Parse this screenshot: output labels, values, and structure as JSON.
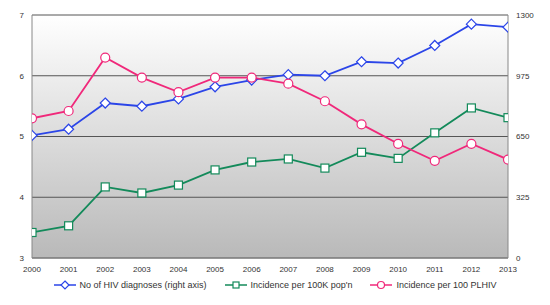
{
  "chart_data": {
    "type": "line",
    "x": [
      2000,
      2001,
      2002,
      2003,
      2004,
      2005,
      2006,
      2007,
      2008,
      2009,
      2010,
      2011,
      2012,
      2013
    ],
    "xlim": [
      2000,
      2013
    ],
    "xticks": [
      2000,
      2001,
      2002,
      2003,
      2004,
      2005,
      2006,
      2007,
      2008,
      2009,
      2010,
      2011,
      2012,
      2013
    ],
    "ylim": [
      3,
      7
    ],
    "yticks": [
      3,
      4,
      5,
      6,
      7
    ],
    "y2lim": [
      0,
      1300
    ],
    "y2ticks": [
      0,
      325,
      650,
      975,
      1300
    ],
    "grid": true,
    "legend": "bottom",
    "series": [
      {
        "name": "No of HIV diagnoses (right axis)",
        "color": "#2b45e8",
        "marker": "diamond",
        "axis": "y2",
        "values": [
          656,
          689,
          829,
          812,
          851,
          916,
          952,
          981,
          975,
          1050,
          1043,
          1137,
          1251,
          1235
        ]
      },
      {
        "name": "Incidence per 100K pop'n",
        "color": "#138a5a",
        "marker": "square",
        "values": [
          3.42,
          3.53,
          4.17,
          4.07,
          4.2,
          4.45,
          4.58,
          4.63,
          4.48,
          4.74,
          4.64,
          5.06,
          5.47,
          5.31
        ]
      },
      {
        "name": "Incidence per 100 PLHIV",
        "color": "#f0287a",
        "marker": "circle",
        "values": [
          5.3,
          5.42,
          6.3,
          5.97,
          5.73,
          5.97,
          5.97,
          5.87,
          5.58,
          5.2,
          4.88,
          4.6,
          4.88,
          4.62
        ]
      }
    ]
  }
}
